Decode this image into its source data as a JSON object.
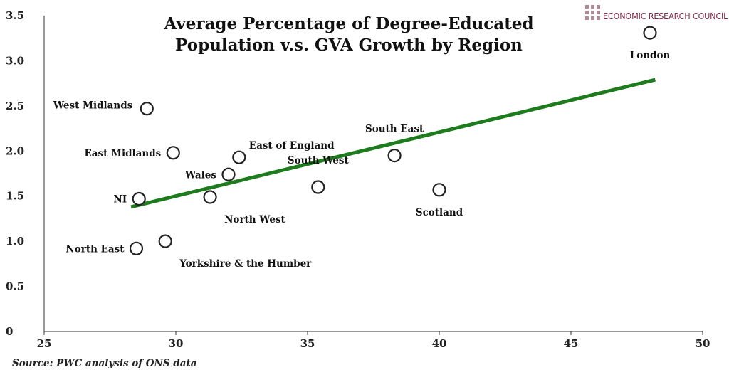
{
  "brand": {
    "name": "ECONOMIC RESEARCH COUNCIL",
    "color": "#7a2a45",
    "mark_color": "#b08a96",
    "icon": "grid-squares-logo-icon"
  },
  "source_note": "Source: PWC analysis of ONS data",
  "chart_data": {
    "type": "scatter",
    "title_lines": [
      "Average Percentage of  Degree-Educated",
      "Population v.s. GVA Growth by Region"
    ],
    "xlabel": "",
    "ylabel": "",
    "xlim": [
      25,
      50
    ],
    "ylim": [
      0,
      3.5
    ],
    "x_ticks": [
      25,
      30,
      35,
      40,
      45,
      50
    ],
    "y_ticks": [
      {
        "value": 0,
        "label": "0"
      },
      {
        "value": 0.5,
        "label": "0.5"
      },
      {
        "value": 1.0,
        "label": "1.0"
      },
      {
        "value": 1.5,
        "label": "1.5"
      },
      {
        "value": 2.0,
        "label": "2.0"
      },
      {
        "value": 2.5,
        "label": "2.5"
      },
      {
        "value": 3.0,
        "label": "3.0"
      },
      {
        "value": 3.5,
        "label": "3.5"
      }
    ],
    "grid": false,
    "points": [
      {
        "label": "London",
        "x": 48.0,
        "y": 3.31,
        "label_pos": "below"
      },
      {
        "label": "West Midlands",
        "x": 28.9,
        "y": 2.47,
        "label_pos": "left-up"
      },
      {
        "label": "East Midlands",
        "x": 29.9,
        "y": 1.98,
        "label_pos": "left"
      },
      {
        "label": "East of England",
        "x": 32.4,
        "y": 1.93,
        "label_pos": "above-right"
      },
      {
        "label": "South East",
        "x": 38.3,
        "y": 1.95,
        "label_pos": "above"
      },
      {
        "label": "Wales",
        "x": 32.0,
        "y": 1.74,
        "label_pos": "left"
      },
      {
        "label": "South West",
        "x": 35.4,
        "y": 1.6,
        "label_pos": "above"
      },
      {
        "label": "Scotland",
        "x": 40.0,
        "y": 1.57,
        "label_pos": "below"
      },
      {
        "label": "NI",
        "x": 28.6,
        "y": 1.47,
        "label_pos": "left"
      },
      {
        "label": "North West",
        "x": 31.3,
        "y": 1.49,
        "label_pos": "below-right"
      },
      {
        "label": "North East",
        "x": 28.5,
        "y": 0.92,
        "label_pos": "left"
      },
      {
        "label": "Yorkshire & the Humber",
        "x": 29.6,
        "y": 1.0,
        "label_pos": "below-right"
      }
    ],
    "trendline": {
      "x": [
        28.3,
        48.2
      ],
      "y": [
        1.38,
        2.79
      ],
      "color": "#1e7b1e"
    },
    "marker": {
      "fill": "#ffffff",
      "stroke": "#222222"
    }
  }
}
